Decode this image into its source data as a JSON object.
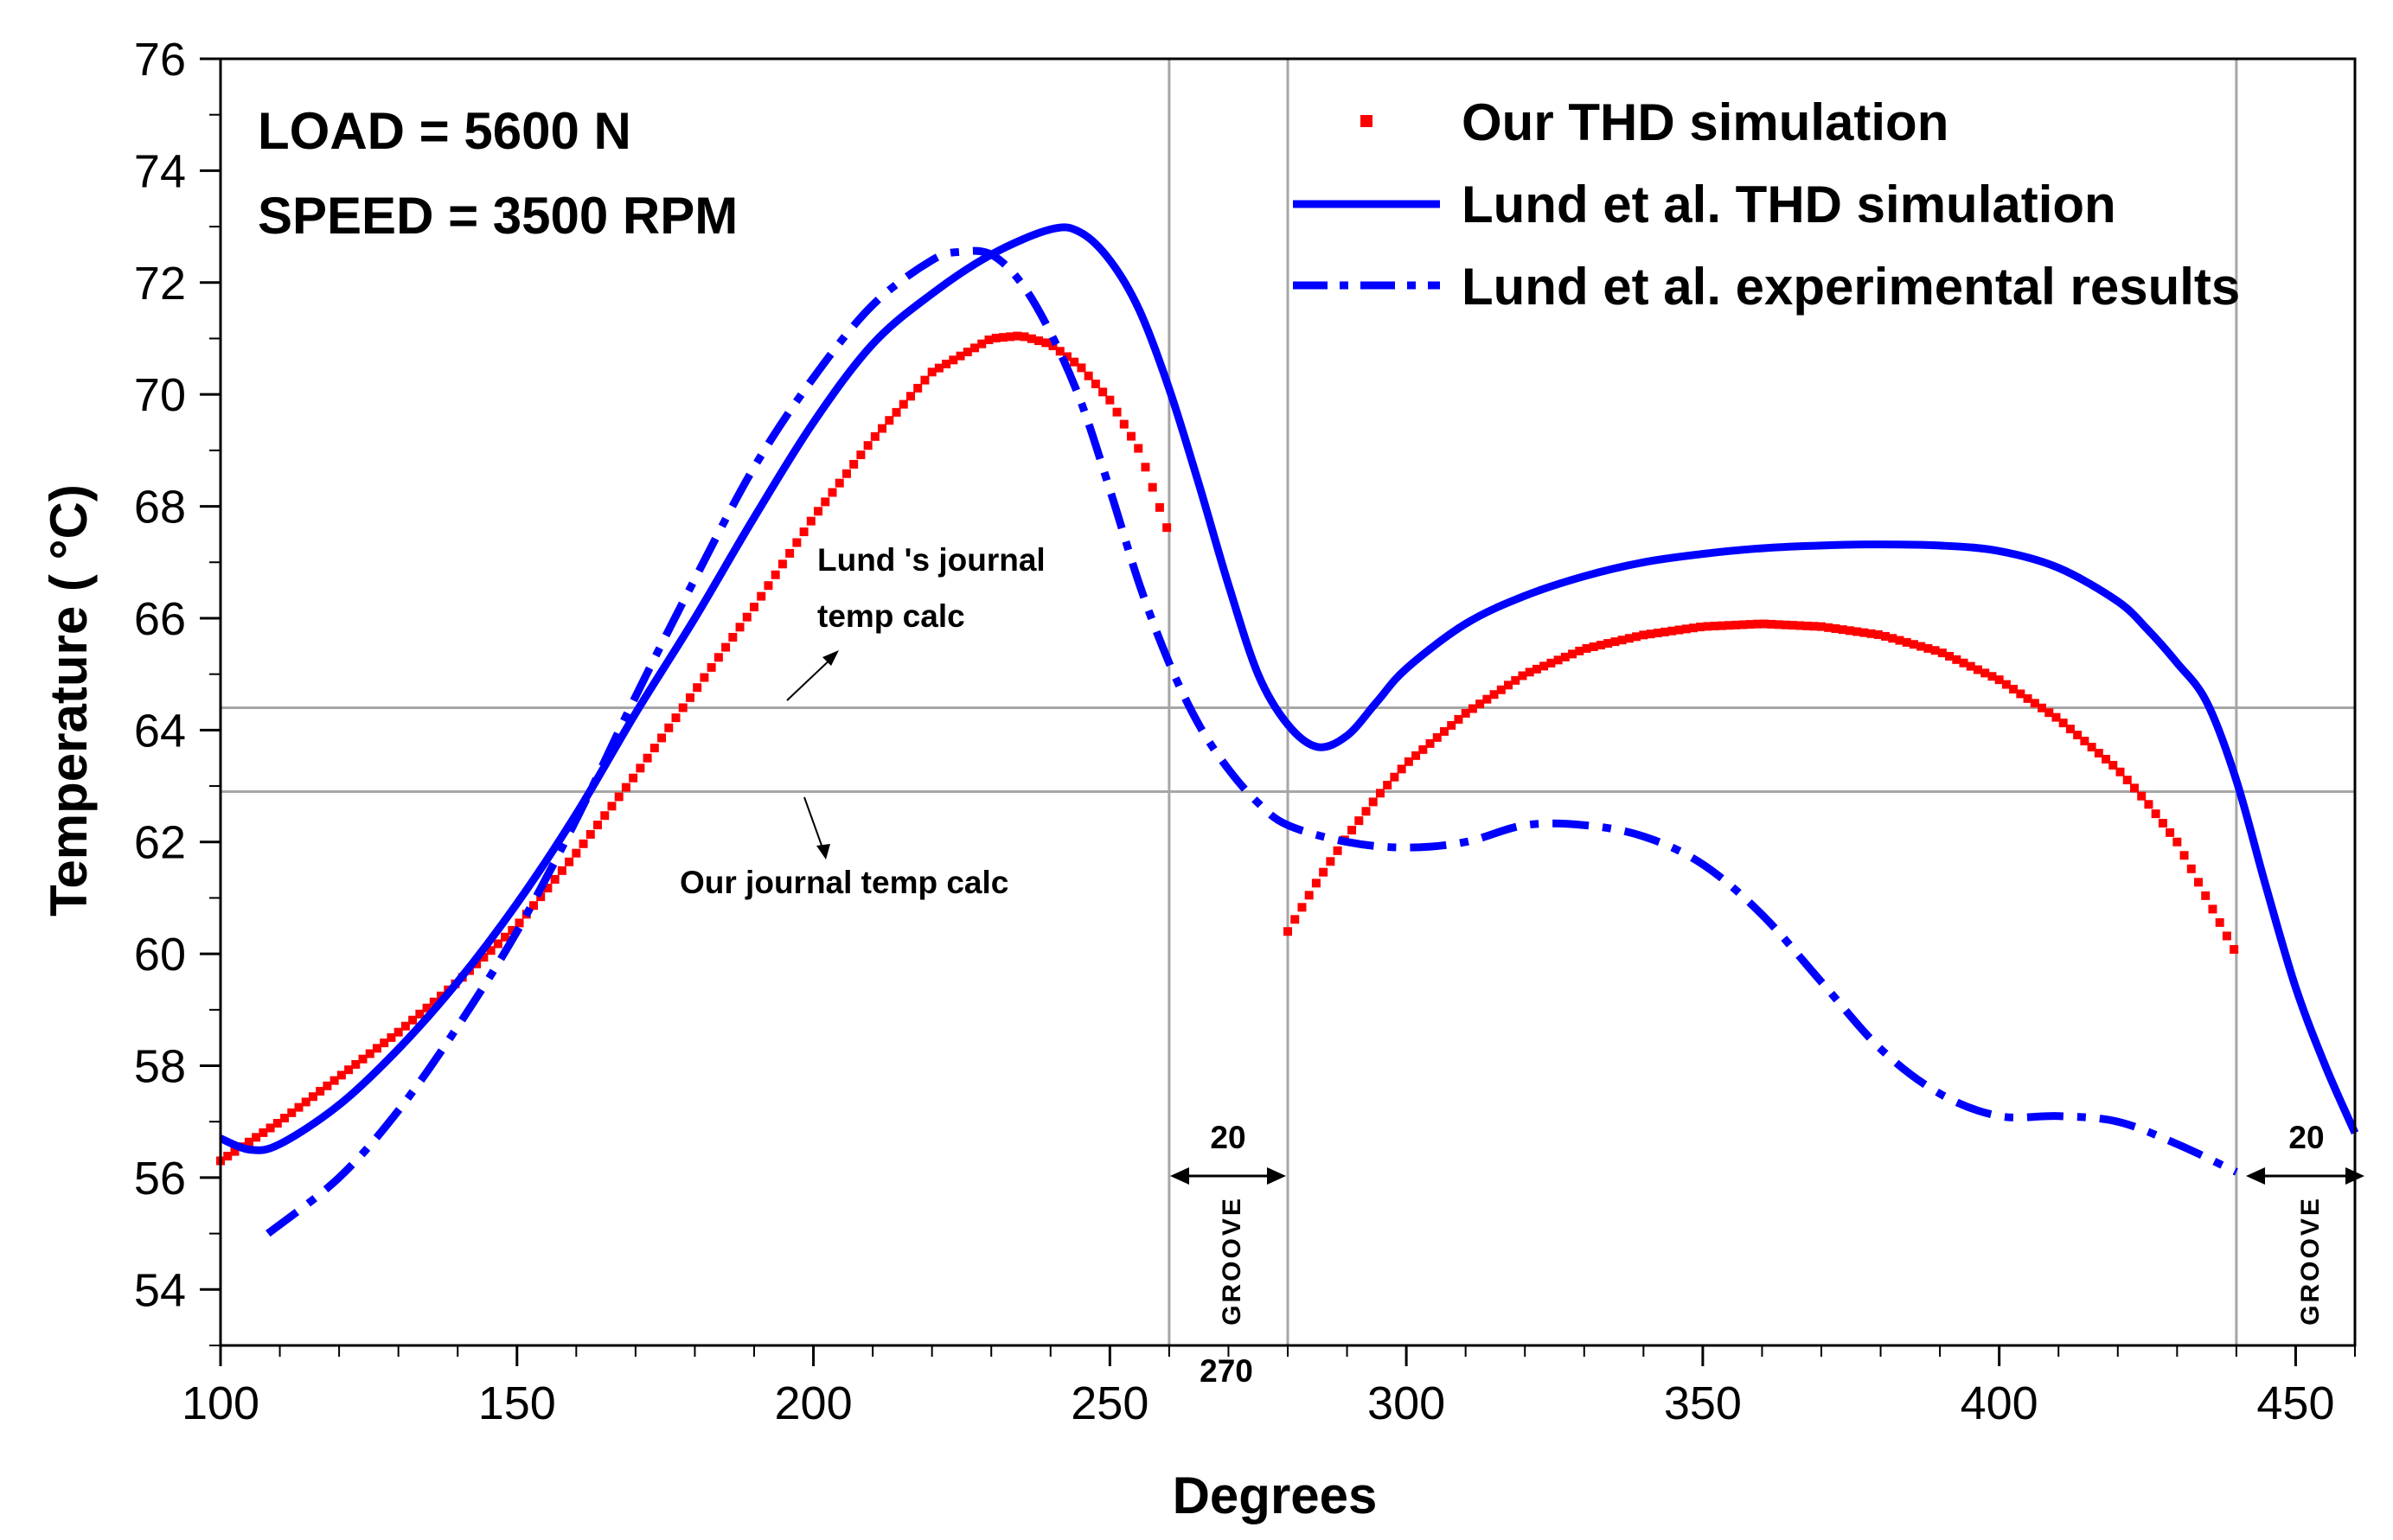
{
  "chart_data": {
    "type": "line",
    "xlabel": "Degrees",
    "ylabel": "Temperature ( °C)",
    "xlim": [
      100,
      460
    ],
    "ylim": [
      53,
      76
    ],
    "x_ticks": [
      100,
      150,
      200,
      250,
      300,
      350,
      400,
      450
    ],
    "y_ticks": [
      54,
      56,
      58,
      60,
      62,
      64,
      66,
      68,
      70,
      72,
      74,
      76
    ],
    "legend_position": "top-right",
    "series": [
      {
        "name": "Our THD simulation",
        "style": "dotted",
        "color": "#ff0000",
        "segments": [
          {
            "x": [
              100,
              110,
              120,
              130,
              140,
              150,
              160,
              170,
              180,
              190,
              200,
              210,
              220,
              230,
              235,
              240,
              245,
              250,
              255,
              260
            ],
            "y": [
              56.3,
              57.0,
              57.8,
              58.6,
              59.5,
              60.5,
              61.8,
              63.2,
              64.7,
              66.2,
              67.8,
              69.2,
              70.4,
              71.0,
              71.05,
              70.9,
              70.5,
              69.9,
              69.0,
              67.5
            ]
          },
          {
            "x": [
              280,
              285,
              290,
              295,
              300,
              310,
              320,
              330,
              340,
              350,
              360,
              370,
              380,
              390,
              400,
              410,
              420,
              425,
              430,
              435,
              440
            ],
            "y": [
              60.4,
              61.3,
              62.1,
              62.8,
              63.4,
              64.3,
              65.0,
              65.45,
              65.7,
              65.85,
              65.9,
              65.85,
              65.7,
              65.4,
              64.9,
              64.2,
              63.3,
              62.7,
              62.0,
              61.0,
              60.0
            ]
          }
        ]
      },
      {
        "name": "Lund et al. THD simulation",
        "style": "solid",
        "color": "#0000ff",
        "segments": [
          {
            "x": [
              100,
              105,
              110,
              120,
              130,
              140,
              150,
              160,
              170,
              180,
              190,
              200,
              210,
              220,
              230,
              240,
              245,
              250,
              255,
              260,
              265,
              270,
              275,
              280,
              285,
              290,
              295,
              300,
              310,
              320,
              330,
              340,
              350,
              360,
              370,
              380,
              390,
              400,
              410,
              420,
              425,
              430,
              435,
              440,
              445,
              450,
              455,
              460
            ],
            "y": [
              56.7,
              56.5,
              56.6,
              57.3,
              58.3,
              59.5,
              60.9,
              62.5,
              64.3,
              66.0,
              67.8,
              69.5,
              70.9,
              71.8,
              72.5,
              72.95,
              72.9,
              72.4,
              71.5,
              70.1,
              68.4,
              66.6,
              65.0,
              64.1,
              63.7,
              63.9,
              64.5,
              65.1,
              65.9,
              66.4,
              66.75,
              67.0,
              67.15,
              67.25,
              67.3,
              67.32,
              67.3,
              67.2,
              66.9,
              66.3,
              65.8,
              65.2,
              64.5,
              63.1,
              61.2,
              59.4,
              58.0,
              56.8
            ]
          }
        ]
      },
      {
        "name": "Lund et al. experimental results",
        "style": "dashdot",
        "color": "#0000ff",
        "segments": [
          {
            "x": [
              108,
              120,
              130,
              140,
              150,
              160,
              170,
              180,
              190,
              200,
              210,
              220,
              225,
              230,
              235,
              240,
              245,
              250,
              255,
              260,
              265,
              270,
              275,
              280,
              290,
              300,
              310,
              320,
              330,
              340,
              350,
              360,
              370,
              380,
              390,
              400,
              410,
              420,
              430,
              440
            ],
            "y": [
              55.0,
              56.0,
              57.2,
              58.7,
              60.4,
              62.4,
              64.6,
              66.7,
              68.7,
              70.3,
              71.6,
              72.4,
              72.55,
              72.5,
              72.0,
              71.1,
              69.9,
              68.3,
              66.6,
              65.2,
              64.1,
              63.3,
              62.7,
              62.3,
              62.0,
              61.9,
              62.0,
              62.3,
              62.3,
              62.1,
              61.6,
              60.7,
              59.5,
              58.3,
              57.5,
              57.1,
              57.1,
              57.0,
              56.6,
              56.1
            ]
          }
        ]
      }
    ],
    "reference_lines": {
      "vertical": [
        260,
        280,
        440
      ],
      "horizontal": [
        64.4,
        62.9
      ]
    },
    "annotations": {
      "load": "LOAD  = 5600 N",
      "speed": "SPEED = 3500 RPM",
      "lund_journal_line1": "Lund 's journal",
      "lund_journal_line2": "temp calc",
      "our_journal": "Our journal temp calc",
      "groove_width_1": "20",
      "groove_width_2": "20",
      "groove_label_1": "GROOVE",
      "groove_label_2": "GROOVE",
      "extra_tick": "270"
    }
  }
}
